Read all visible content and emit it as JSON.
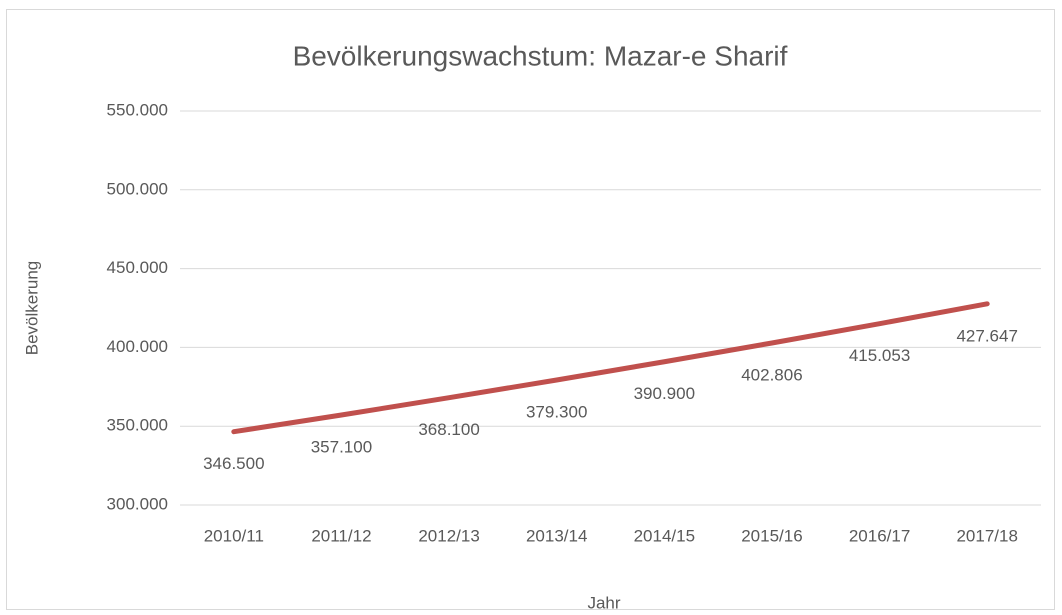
{
  "chart_data": {
    "type": "line",
    "title": "Bevölkerungswachstum: Mazar-e Sharif",
    "x_label": "Jahr",
    "y_label": "Bevölkerung",
    "categories": [
      "2010/11",
      "2011/12",
      "2012/13",
      "2013/14",
      "2014/15",
      "2015/16",
      "2016/17",
      "2017/18"
    ],
    "series": [
      {
        "name": "Bevölkerung",
        "color": "#c0504d",
        "values": [
          346500,
          357100,
          368100,
          379300,
          390900,
          402806,
          415053,
          427647
        ],
        "value_labels": [
          "346.500",
          "357.100",
          "368.100",
          "379.300",
          "390.900",
          "402.806",
          "415.053",
          "427.647"
        ]
      }
    ],
    "ylim": [
      300000,
      550000
    ],
    "yticks": [
      {
        "value": 300000,
        "label": "300.000"
      },
      {
        "value": 350000,
        "label": "350.000"
      },
      {
        "value": 400000,
        "label": "400.000"
      },
      {
        "value": 450000,
        "label": "450.000"
      },
      {
        "value": 500000,
        "label": "500.000"
      },
      {
        "value": 550000,
        "label": "550.000"
      }
    ],
    "grid": true
  }
}
